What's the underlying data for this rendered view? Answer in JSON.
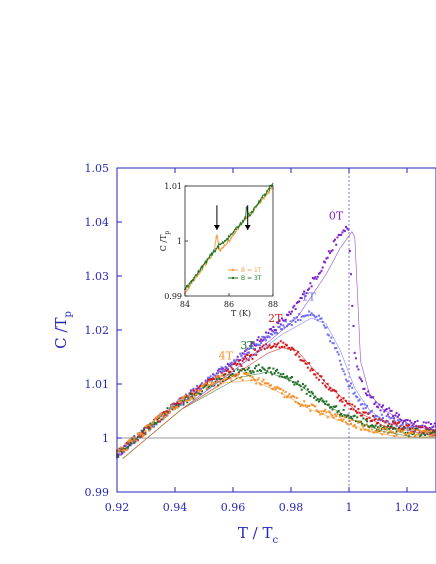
{
  "chart_data": [
    {
      "type": "scatter",
      "xlabel": "T / T",
      "xlabel_sub": "c",
      "ylabel": "C /T",
      "ylabel_sub": "p",
      "xlim": [
        0.92,
        1.03
      ],
      "ylim": [
        0.99,
        1.05
      ],
      "x_ticks": [
        0.92,
        0.94,
        0.96,
        0.98,
        1,
        1.02
      ],
      "x_tick_labels": [
        "0.92",
        "0.94",
        "0.96",
        "0.98",
        "1",
        "1.02"
      ],
      "y_ticks": [
        0.99,
        1,
        1.01,
        1.02,
        1.03,
        1.04,
        1.05
      ],
      "y_tick_labels": [
        "0.99",
        "1",
        "1.01",
        "1.02",
        "1.03",
        "1.04",
        "1.05"
      ],
      "reference_lines": {
        "horizontal_y": 1,
        "vertical_dotted_x": 1
      },
      "grid": false,
      "series": [
        {
          "name": "0T",
          "color": "#7d22c9",
          "x": [
            0.92,
            0.94,
            0.96,
            0.98,
            0.99,
            0.995,
            0.999,
            1.0,
            1.002,
            1.005,
            1.01,
            1.02,
            1.03
          ],
          "y": [
            0.997,
            1.006,
            1.014,
            1.023,
            1.031,
            1.036,
            1.039,
            1.038,
            1.015,
            1.009,
            1.006,
            1.003,
            1.002
          ]
        },
        {
          "name": "1T",
          "color": "#6f6ff2",
          "x": [
            0.92,
            0.94,
            0.96,
            0.975,
            0.985,
            0.99,
            0.995,
            1.0,
            1.005,
            1.01,
            1.02,
            1.03
          ],
          "y": [
            0.997,
            1.006,
            1.014,
            1.02,
            1.023,
            1.022,
            1.017,
            1.01,
            1.006,
            1.004,
            1.002,
            1.001
          ]
        },
        {
          "name": "2T",
          "color": "#d41c1c",
          "x": [
            0.92,
            0.94,
            0.96,
            0.97,
            0.975,
            0.98,
            0.99,
            1.0,
            1.01,
            1.02,
            1.03
          ],
          "y": [
            0.997,
            1.006,
            1.013,
            1.0165,
            1.0175,
            1.017,
            1.011,
            1.006,
            1.003,
            1.002,
            1.001
          ]
        },
        {
          "name": "3T",
          "color": "#1f6e25",
          "x": [
            0.92,
            0.94,
            0.96,
            0.97,
            0.98,
            0.99,
            1.0,
            1.01,
            1.02,
            1.03
          ],
          "y": [
            0.997,
            1.006,
            1.012,
            1.013,
            1.011,
            1.007,
            1.004,
            1.002,
            1.001,
            1.001
          ]
        },
        {
          "name": "4T",
          "color": "#f5922a",
          "x": [
            0.92,
            0.94,
            0.955,
            0.965,
            0.975,
            0.985,
            0.995,
            1.005,
            1.015,
            1.03
          ],
          "y": [
            0.997,
            1.006,
            1.011,
            1.0115,
            1.009,
            1.006,
            1.004,
            1.002,
            1.001,
            1.001
          ]
        }
      ],
      "annotations": [
        "0T",
        "1T",
        "2T",
        "3T",
        "4T"
      ]
    },
    {
      "type": "line",
      "xlabel": "T (K)",
      "ylabel": "C /T",
      "ylabel_sub": "p",
      "xlim": [
        84,
        88
      ],
      "ylim": [
        0.99,
        1.01
      ],
      "x_ticks": [
        84,
        86,
        88
      ],
      "x_tick_labels": [
        "84",
        "86",
        "88"
      ],
      "y_ticks": [
        0.99,
        1,
        1.01
      ],
      "y_tick_labels": [
        "0.99",
        "1",
        "1.01"
      ],
      "series": [
        {
          "name": "B = 1T",
          "color": "#f5a14a",
          "x": [
            84,
            84.5,
            85,
            85.3,
            85.45,
            85.5,
            85.55,
            85.6,
            85.7,
            86,
            86.5,
            87,
            87.5,
            88
          ],
          "y": [
            0.9905,
            0.9935,
            0.9962,
            0.9978,
            1.0015,
            1.0002,
            0.9985,
            0.9983,
            0.9987,
            1.0,
            1.0028,
            1.0052,
            1.0075,
            1.0098
          ]
        },
        {
          "name": "B = 3T",
          "color": "#1f7a2a",
          "x": [
            84,
            84.5,
            85,
            85.5,
            86,
            86.5,
            86.75,
            86.8,
            86.85,
            86.95,
            87,
            87.5,
            88
          ],
          "y": [
            0.9912,
            0.9938,
            0.9965,
            0.999,
            1.0007,
            1.003,
            1.0042,
            1.007,
            1.0048,
            1.0045,
            1.005,
            1.0078,
            1.0105
          ]
        }
      ],
      "arrows_at_x": [
        85.45,
        86.85
      ]
    }
  ]
}
